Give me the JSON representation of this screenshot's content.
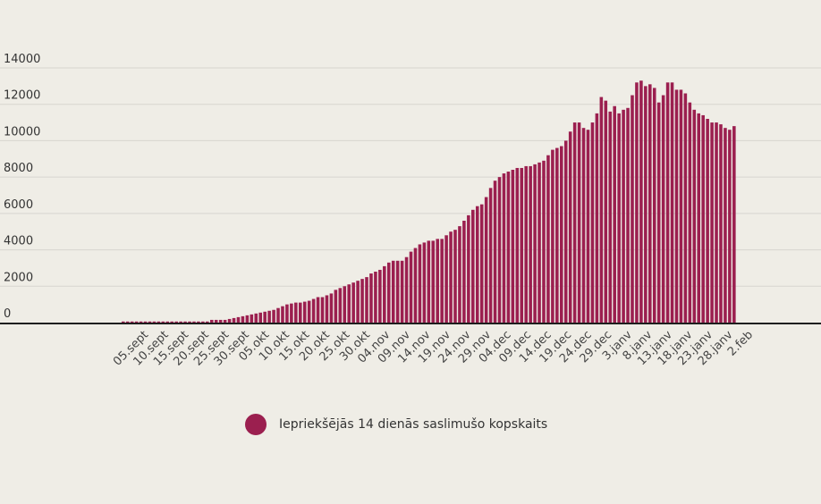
{
  "chart_data": {
    "type": "bar",
    "title": "",
    "xlabel": "",
    "ylabel": "",
    "ylim": [
      0,
      14000
    ],
    "y_ticks": [
      0,
      2000,
      4000,
      6000,
      8000,
      10000,
      12000,
      14000
    ],
    "x_tick_labels": [
      "05.sept",
      "10.sept",
      "15.sept",
      "20.sept",
      "25.sept",
      "30.sept",
      "05.okt",
      "10.okt",
      "15.okt",
      "20.okt",
      "25.okt",
      "30.okt",
      "04.nov",
      "09.nov",
      "14.nov",
      "19.nov",
      "24.nov",
      "29.nov",
      "04.dec",
      "09.dec",
      "14.dec",
      "19.dec",
      "24.dec",
      "29.dec",
      "3.janv",
      "8.janv",
      "13.janv",
      "18.janv",
      "23.janv",
      "28.janv",
      "2.feb"
    ],
    "grid": true,
    "legend_position": "bottom",
    "series": [
      {
        "name": "Iepriekšējās 14 dienās saslimušo kopskaits",
        "color": "#9b1f4f",
        "values": [
          60,
          60,
          60,
          60,
          60,
          60,
          60,
          60,
          60,
          60,
          60,
          60,
          60,
          60,
          60,
          60,
          60,
          60,
          60,
          60,
          150,
          150,
          150,
          150,
          200,
          250,
          300,
          350,
          400,
          450,
          500,
          550,
          600,
          650,
          700,
          800,
          900,
          1000,
          1050,
          1100,
          1100,
          1150,
          1200,
          1300,
          1400,
          1400,
          1500,
          1600,
          1800,
          1900,
          2000,
          2100,
          2200,
          2300,
          2400,
          2500,
          2700,
          2800,
          2900,
          3100,
          3300,
          3400,
          3400,
          3400,
          3600,
          3900,
          4100,
          4300,
          4400,
          4500,
          4500,
          4600,
          4600,
          4800,
          5000,
          5100,
          5300,
          5600,
          5900,
          6200,
          6400,
          6500,
          6900,
          7400,
          7800,
          8000,
          8200,
          8300,
          8400,
          8500,
          8500,
          8600,
          8600,
          8700,
          8800,
          8900,
          9200,
          9500,
          9600,
          9700,
          10000,
          10500,
          11000,
          11000,
          10700,
          10600,
          11000,
          11500,
          12400,
          12200,
          11600,
          11900,
          11500,
          11700,
          11800,
          12500,
          13200,
          13300,
          13000,
          13100,
          12900,
          12100,
          12500,
          13200,
          13200,
          12800,
          12800,
          12600,
          12100,
          11700,
          11500,
          11400,
          11200,
          11000,
          11000,
          10900,
          10700,
          10600,
          10800
        ]
      }
    ]
  },
  "legend": {
    "label": "Iepriekšējās 14 dienās saslimušo kopskaits",
    "color": "#9b1f4f"
  }
}
